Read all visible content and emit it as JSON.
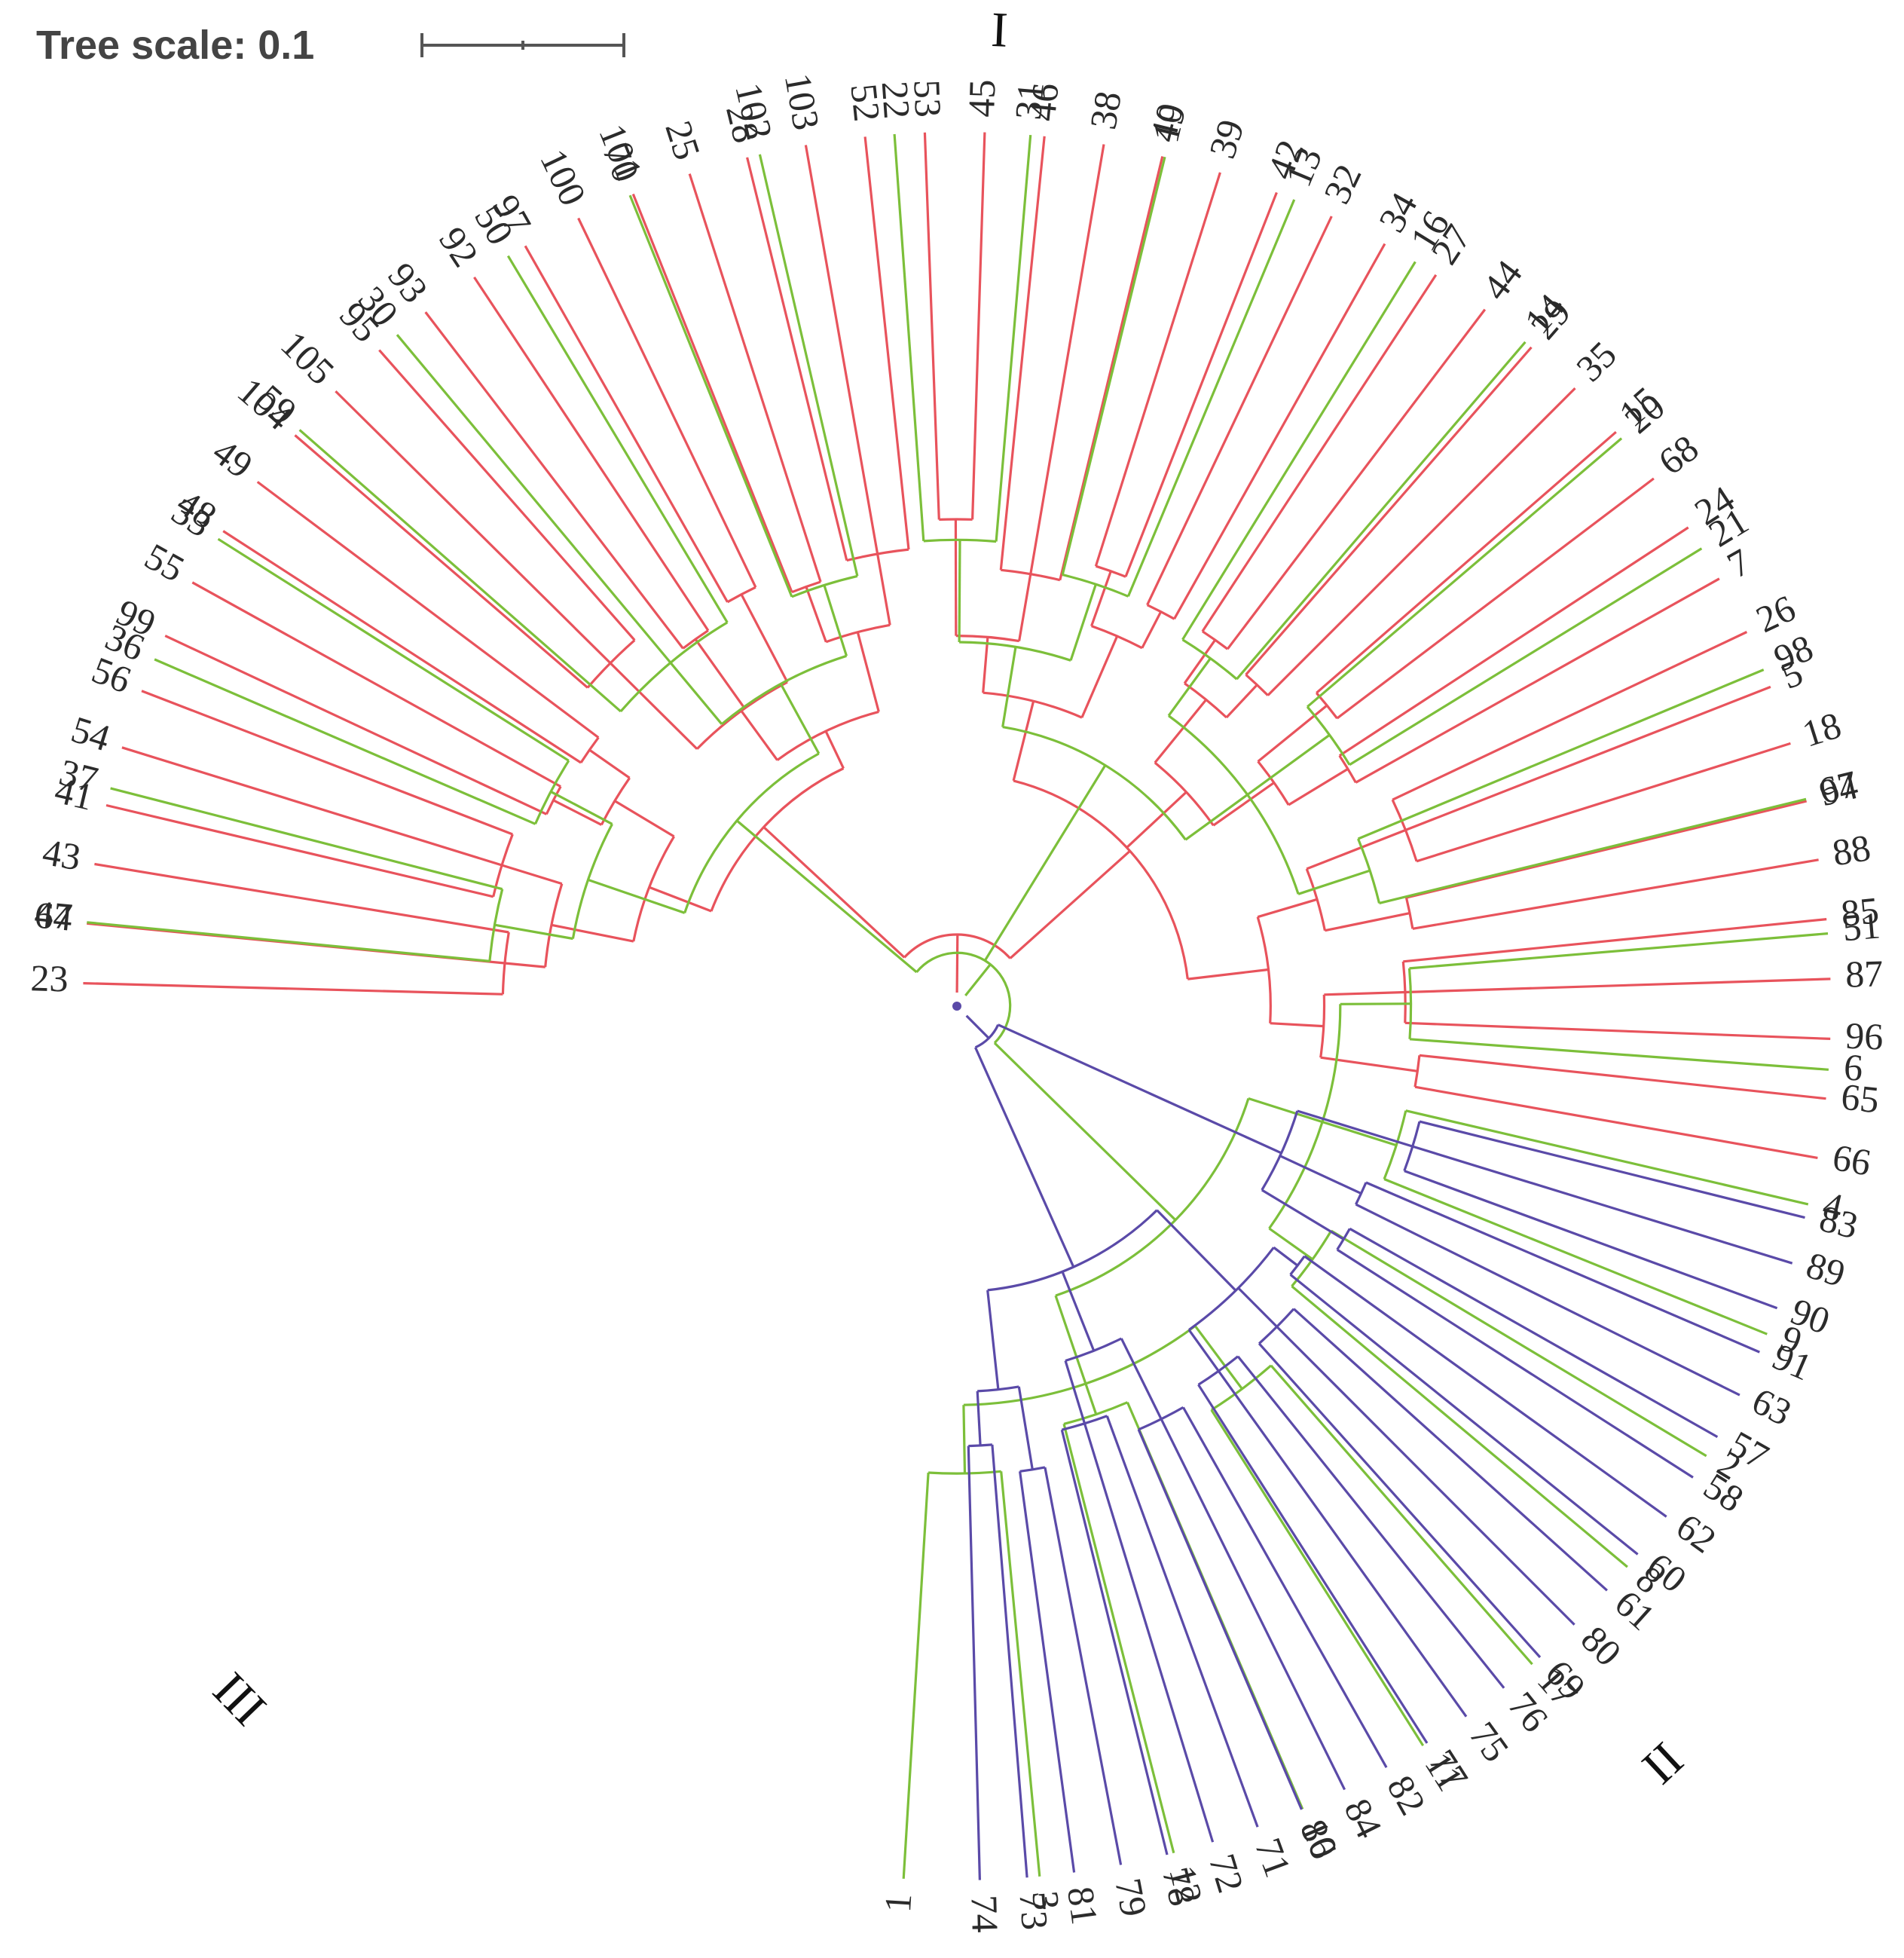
{
  "scale_bar": {
    "title": "Tree scale: 0.1"
  },
  "clades": [
    {
      "label": "I",
      "color": "#e8535c",
      "leaves": [
        "66",
        "65",
        "96",
        "87",
        "85",
        "88",
        "94",
        "18",
        "5",
        "26",
        "7",
        "24",
        "68",
        "15",
        "35",
        "29",
        "44",
        "27",
        "34",
        "32",
        "42",
        "39",
        "40",
        "38",
        "46",
        "45",
        "53",
        "52",
        "103",
        "28",
        "25",
        "101",
        "100",
        "97",
        "92",
        "93",
        "95",
        "105",
        "104",
        "49",
        "48",
        "55",
        "99",
        "56",
        "54",
        "41",
        "43",
        "64",
        "23"
      ]
    },
    {
      "label": "III",
      "color": "#7cbf3a",
      "leaves": [
        "47",
        "37",
        "36",
        "33",
        "59",
        "30",
        "50",
        "70",
        "102",
        "22",
        "31",
        "19",
        "13",
        "16",
        "14",
        "20",
        "21",
        "98",
        "67",
        "51",
        "6",
        "4",
        "9",
        "2",
        "8",
        "17",
        "11",
        "10",
        "12",
        "3",
        "1"
      ]
    },
    {
      "label": "II",
      "color": "#5a4aa8",
      "leaves": [
        "74",
        "73",
        "81",
        "79",
        "78",
        "72",
        "71",
        "86",
        "84",
        "82",
        "77",
        "75",
        "76",
        "69",
        "80",
        "61",
        "60",
        "62",
        "58",
        "57",
        "63",
        "91",
        "90",
        "89",
        "83"
      ]
    }
  ]
}
